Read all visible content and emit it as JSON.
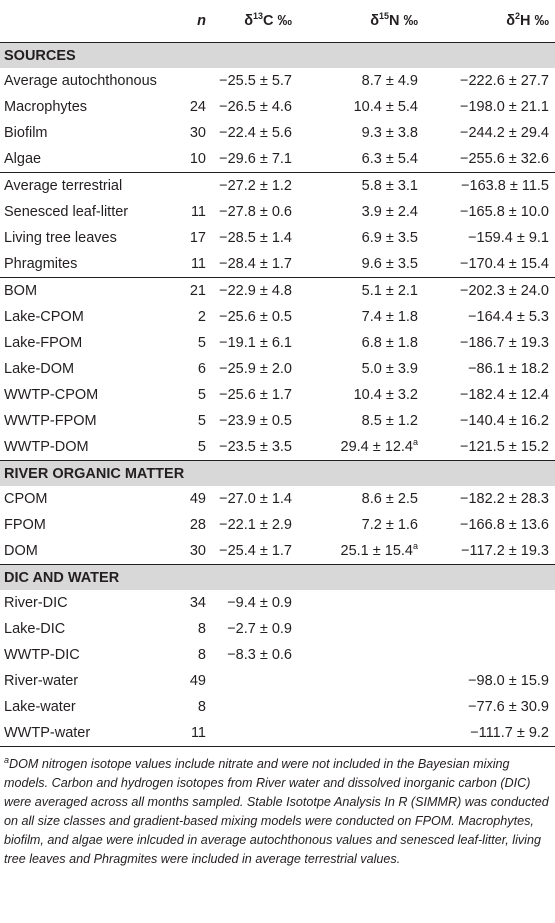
{
  "headers": {
    "col0": "",
    "n": "n",
    "c13": "δ13C ‰",
    "n15": "δ15N ‰",
    "h2": "δ2H ‰"
  },
  "sections": {
    "sources": "SOURCES",
    "river": "RIVER ORGANIC MATTER",
    "dic": "DIC AND WATER"
  },
  "rows": [
    [
      "Average autochthonous",
      "",
      "−25.5 ± 5.7",
      "8.7 ± 4.9",
      "−222.6 ± 27.7"
    ],
    [
      "Macrophytes",
      "24",
      "−26.5 ± 4.6",
      "10.4 ± 5.4",
      "−198.0 ± 21.1"
    ],
    [
      "Biofilm",
      "30",
      "−22.4 ± 5.6",
      "9.3 ± 3.8",
      "−244.2 ± 29.4"
    ],
    [
      "Algae",
      "10",
      "−29.6 ± 7.1",
      "6.3 ± 5.4",
      "−255.6 ± 32.6"
    ],
    [
      "Average terrestrial",
      "",
      "−27.2 ± 1.2",
      "5.8 ± 3.1",
      "−163.8 ± 11.5"
    ],
    [
      "Senesced leaf-litter",
      "11",
      "−27.8 ± 0.6",
      "3.9 ± 2.4",
      "−165.8 ± 10.0"
    ],
    [
      "Living tree leaves",
      "17",
      "−28.5 ± 1.4",
      "6.9 ± 3.5",
      "−159.4 ± 9.1"
    ],
    [
      "Phragmites",
      "11",
      "−28.4 ± 1.7",
      "9.6 ± 3.5",
      "−170.4 ± 15.4"
    ],
    [
      "BOM",
      "21",
      "−22.9 ± 4.8",
      "5.1 ± 2.1",
      "−202.3 ± 24.0"
    ],
    [
      "Lake-CPOM",
      "2",
      "−25.6 ± 0.5",
      "7.4 ± 1.8",
      "−164.4 ± 5.3"
    ],
    [
      "Lake-FPOM",
      "5",
      "−19.1 ± 6.1",
      "6.8 ± 1.8",
      "−186.7 ± 19.3"
    ],
    [
      "Lake-DOM",
      "6",
      "−25.9 ± 2.0",
      "5.0 ± 3.9",
      "−86.1 ± 18.2"
    ],
    [
      "WWTP-CPOM",
      "5",
      "−25.6 ± 1.7",
      "10.4 ± 3.2",
      "−182.4 ± 12.4"
    ],
    [
      "WWTP-FPOM",
      "5",
      "−23.9 ± 0.5",
      "8.5 ± 1.2",
      "−140.4 ± 16.2"
    ],
    [
      "WWTP-DOM",
      "5",
      "−23.5 ± 3.5",
      "29.4 ± 12.4",
      "−121.5 ± 15.2"
    ],
    [
      "CPOM",
      "49",
      "−27.0 ± 1.4",
      "8.6 ± 2.5",
      "−182.2 ± 28.3"
    ],
    [
      "FPOM",
      "28",
      "−22.1 ± 2.9",
      "7.2 ± 1.6",
      "−166.8 ± 13.6"
    ],
    [
      "DOM",
      "30",
      "−25.4 ± 1.7",
      "25.1 ± 15.4",
      "−117.2 ± 19.3"
    ],
    [
      "River-DIC",
      "34",
      "−9.4 ± 0.9",
      "",
      ""
    ],
    [
      "Lake-DIC",
      "8",
      "−2.7 ± 0.9",
      "",
      ""
    ],
    [
      "WWTP-DIC",
      "8",
      "−8.3 ± 0.6",
      "",
      ""
    ],
    [
      "River-water",
      "49",
      "",
      "",
      "−98.0 ± 15.9"
    ],
    [
      "Lake-water",
      "8",
      "",
      "",
      "−77.6 ± 30.9"
    ],
    [
      "WWTP-water",
      "11",
      "",
      "",
      "−111.7 ± 9.2"
    ]
  ],
  "superscript_a": "a",
  "footnote": {
    "marker": "a",
    "text": "DOM nitrogen isotope values include nitrate and were not included in the Bayesian mixing models. Carbon and hydrogen isotopes from River water and dissolved inorganic carbon (DIC) were averaged across all months sampled. Stable Isototpe Analysis In R (SIMMR) was conducted on all size classes and gradient-based mixing models were conducted on FPOM. Macrophytes, biofilm, and algae were inlcuded in average autochthonous values and senesced leaf-litter, living tree leaves and Phragmites were included in average terrestrial values."
  }
}
